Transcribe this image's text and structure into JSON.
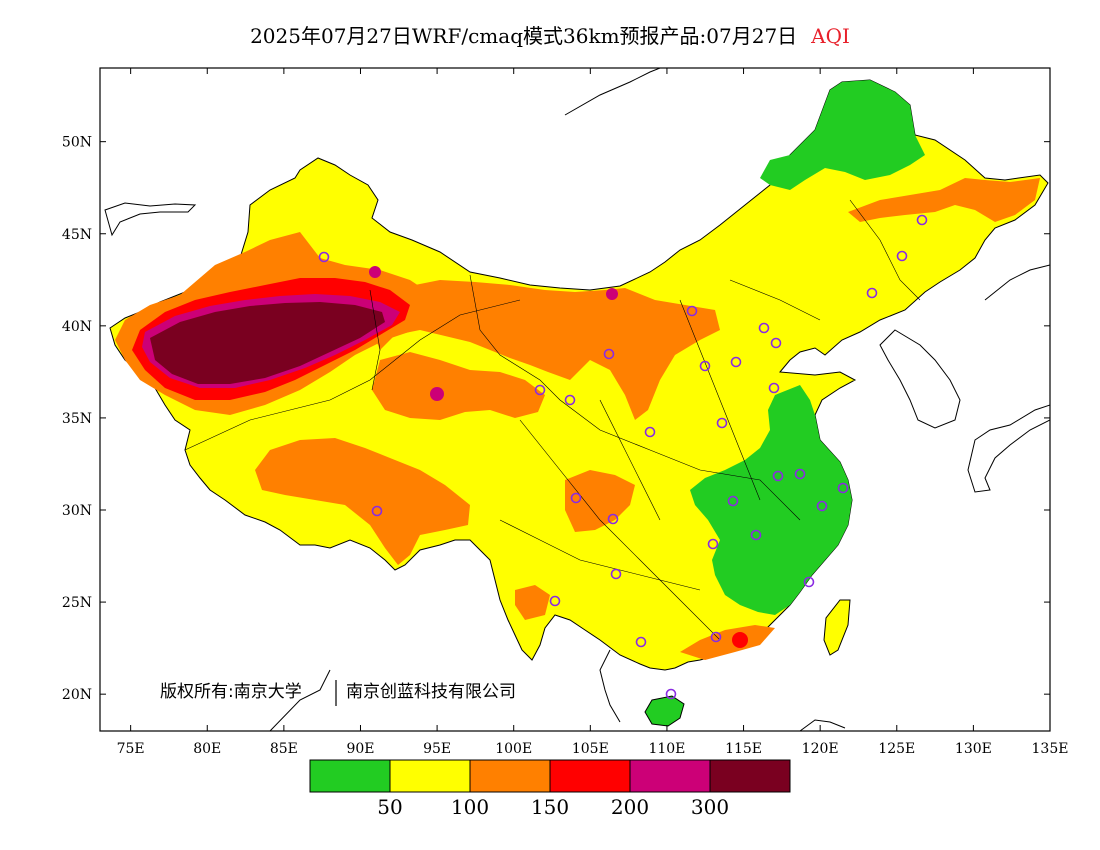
{
  "title": {
    "text": "2025年07月27日WRF/cmaq模式36km预报产品:07月27日",
    "variable": "AQI",
    "variable_color": "#e8212b"
  },
  "axes": {
    "lon_ticks": [
      "75E",
      "80E",
      "85E",
      "90E",
      "95E",
      "100E",
      "105E",
      "110E",
      "115E",
      "120E",
      "125E",
      "130E",
      "135E"
    ],
    "lat_ticks": [
      "20N",
      "25N",
      "30N",
      "35N",
      "40N",
      "45N",
      "50N"
    ],
    "lon_range": [
      73,
      135
    ],
    "lat_range": [
      18,
      54
    ]
  },
  "copyright": {
    "owner1": "版权所有:南京大学",
    "owner2": "南京创蓝科技有限公司"
  },
  "legend": {
    "colors": [
      "#22cc22",
      "#ffff00",
      "#ff8000",
      "#ff0000",
      "#cc0077",
      "#7a0020"
    ],
    "labels": [
      "50",
      "100",
      "150",
      "200",
      "300"
    ]
  },
  "colors": {
    "land_default": "#ffff00",
    "water": "#ffffff",
    "station_marker": "#8a2be2",
    "border": "#000000"
  }
}
